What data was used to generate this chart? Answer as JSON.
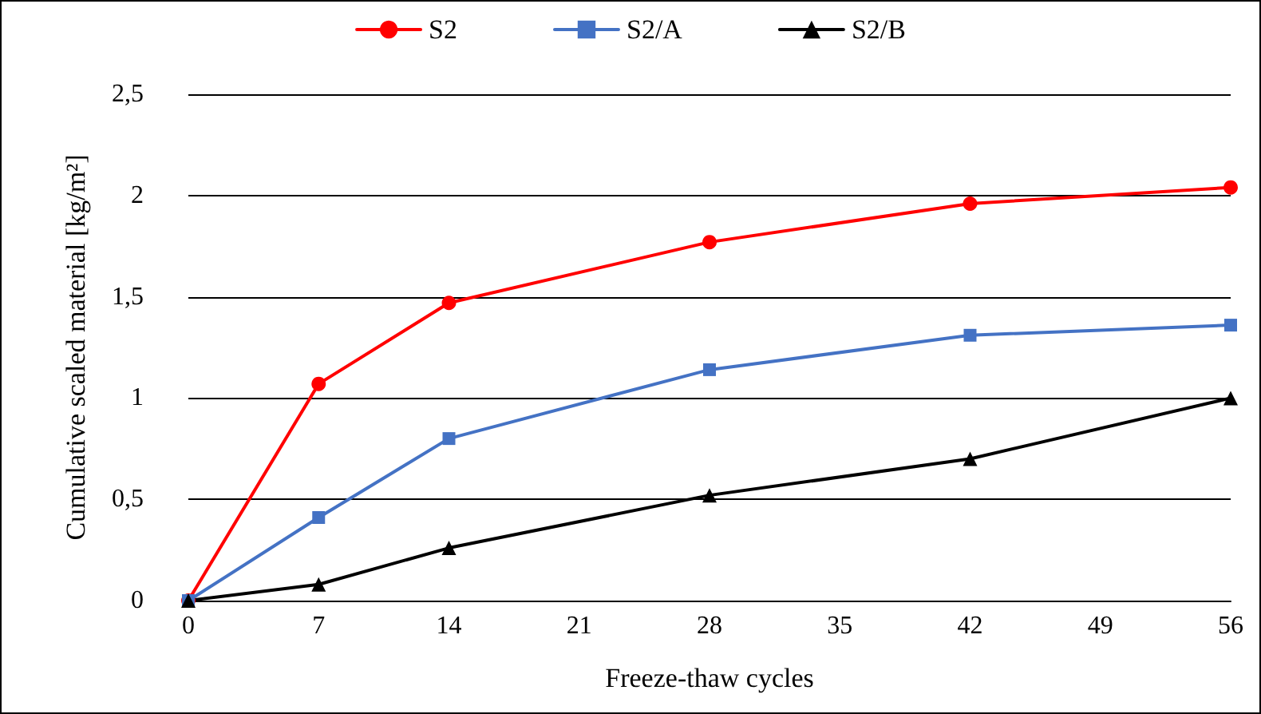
{
  "chart_data": {
    "type": "line",
    "xlabel": "Freeze-thaw cycles",
    "ylabel": "Cumulative scaled material [kg/m²]",
    "x": [
      0,
      7,
      14,
      28,
      42,
      56
    ],
    "series": [
      {
        "name": "S2",
        "color": "#ff0000",
        "marker": "circle",
        "values": [
          0,
          1.07,
          1.47,
          1.77,
          1.96,
          2.04
        ]
      },
      {
        "name": "S2/A",
        "color": "#4472c4",
        "marker": "square",
        "values": [
          0,
          0.41,
          0.8,
          1.14,
          1.31,
          1.36
        ]
      },
      {
        "name": "S2/B",
        "color": "#000000",
        "marker": "triangle",
        "values": [
          0,
          0.08,
          0.26,
          0.52,
          0.7,
          1.0
        ]
      }
    ],
    "xlim": [
      0,
      56
    ],
    "xticks": [
      0,
      7,
      14,
      21,
      28,
      35,
      42,
      49,
      56
    ],
    "ylim": [
      0,
      2.5
    ],
    "yticks": [
      0,
      {
        "value": 0.5,
        "label": "0,5"
      },
      1,
      {
        "value": 1.5,
        "label": "1,5"
      },
      2,
      {
        "value": 2.5,
        "label": "2,5"
      }
    ],
    "grid": "y",
    "legend": "top",
    "line_style": "solid"
  }
}
